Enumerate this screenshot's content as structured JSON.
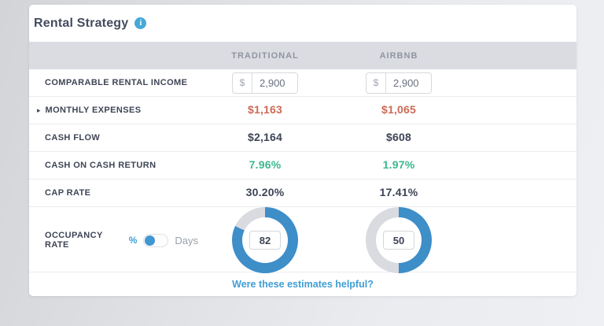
{
  "title": "Rental Strategy",
  "icons": {
    "info": "i",
    "expand_arrow": "▸"
  },
  "columns": [
    "TRADITIONAL",
    "AIRBNB"
  ],
  "rows": {
    "comparable_rental_income": {
      "label": "COMPARABLE RENTAL INCOME",
      "currency_symbol": "$",
      "traditional": "2,900",
      "airbnb": "2,900"
    },
    "monthly_expenses": {
      "label": "MONTHLY EXPENSES",
      "traditional": "$1,163",
      "airbnb": "$1,065"
    },
    "cash_flow": {
      "label": "CASH FLOW",
      "traditional": "$2,164",
      "airbnb": "$608"
    },
    "cash_on_cash_return": {
      "label": "CASH ON CASH RETURN",
      "traditional": "7.96%",
      "airbnb": "1.97%"
    },
    "cap_rate": {
      "label": "CAP RATE",
      "traditional": "30.20%",
      "airbnb": "17.41%"
    },
    "occupancy_rate": {
      "label": "OCCUPANCY RATE",
      "toggle_left": "%",
      "toggle_right": "Days",
      "toggle_selected": "%",
      "traditional": 82,
      "airbnb": 50
    }
  },
  "footer": {
    "link": "Were these estimates helpful?"
  },
  "colors": {
    "negative": "#cd6a56",
    "positive": "#3bb88e",
    "dark_text": "#3d4455",
    "link_blue": "#3f9ed6",
    "donut_blue": "#3e8ec8",
    "donut_track": "#d9dbe0",
    "toggle_blue": "#4197d3",
    "info_blue": "#47a8d8",
    "header_band": "#dbdce2"
  }
}
